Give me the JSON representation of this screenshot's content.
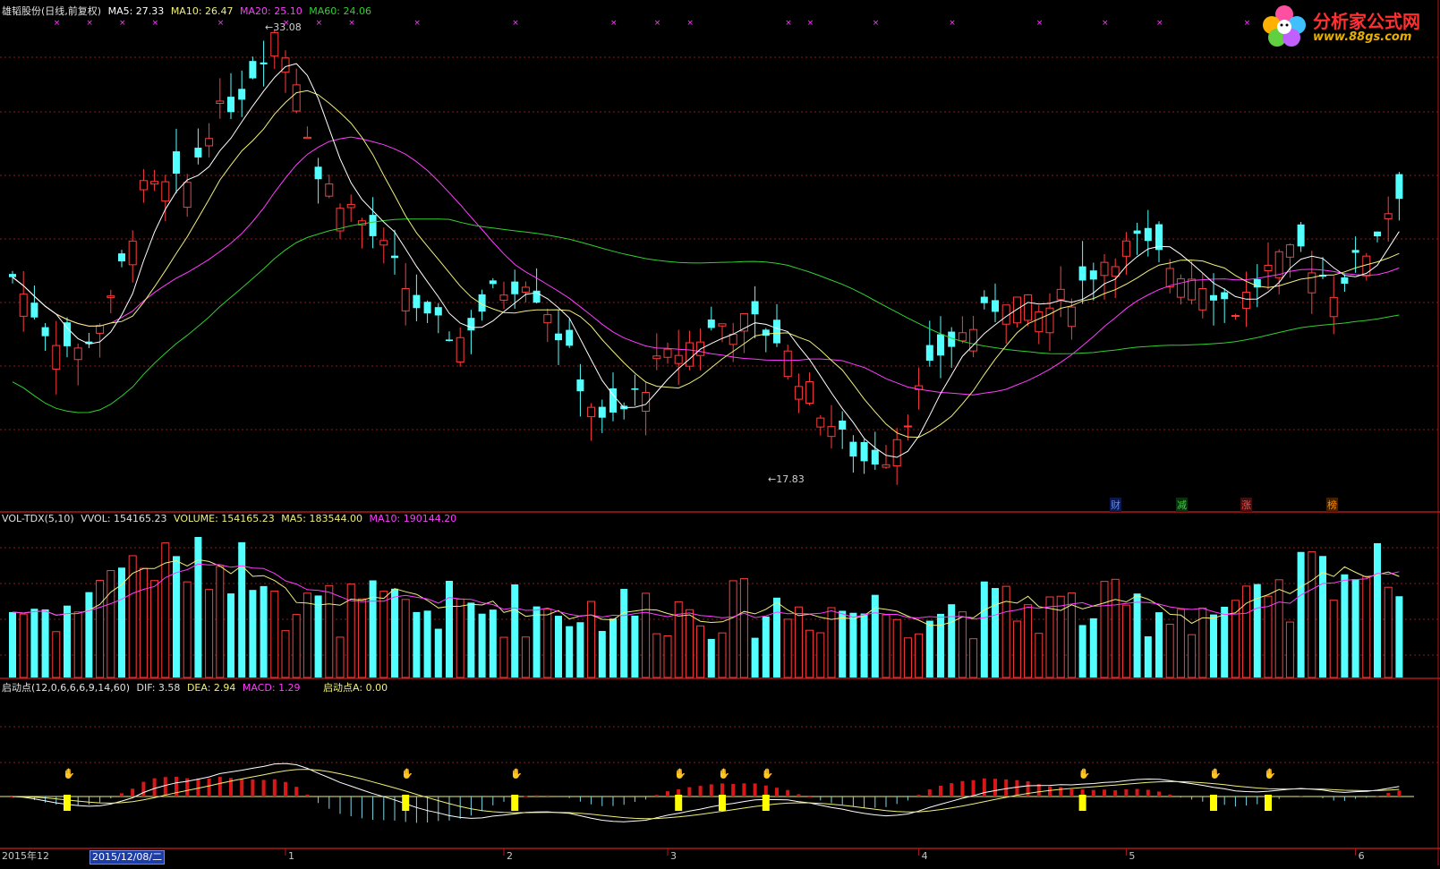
{
  "header_main": {
    "title": "雄韬股份(日线,前复权)",
    "ma5": "MA5: 27.33",
    "ma10": "MA10: 26.47",
    "ma20": "MA20: 25.10",
    "ma60": "MA60: 24.06"
  },
  "header_vol": {
    "title": "VOL-TDX(5,10)",
    "vvol": "VVOL: 154165.23",
    "volume": "VOLUME: 154165.23",
    "ma5": "MA5: 183544.00",
    "ma10": "MA10: 190144.20"
  },
  "header_ind": {
    "title": "启动点(12,0,6,6,6,9,14,60)",
    "dif": "DIF: 3.58",
    "dea": "DEA: 2.94",
    "macd": "MACD: 1.29",
    "qdd": "启动点A: 0.00"
  },
  "annotations": {
    "high": "←33.08",
    "low": "←17.83"
  },
  "badges": [
    {
      "text": "财",
      "color": "#5a8cff"
    },
    {
      "text": "减",
      "color": "#49c849"
    },
    {
      "text": "涨",
      "color": "#ff4848"
    },
    {
      "text": "榜",
      "color": "#ff8c00"
    }
  ],
  "logo": {
    "cn": "分析家公式网",
    "url": "www.88gs.com"
  },
  "x_axis": {
    "start": "2015年12",
    "cursor_date": "2015/12/08/二",
    "months": [
      "1",
      "2",
      "3",
      "4",
      "5",
      "6"
    ]
  },
  "colors": {
    "up": "#ff3c3c",
    "down": "#54ffff",
    "ma5": "#ffffff",
    "ma10": "#f0f07a",
    "ma20": "#ff3cff",
    "ma60": "#30d030",
    "grid": "#8b1a1a"
  },
  "chart_data": {
    "type": "candlestick",
    "y_high": 33.08,
    "y_low": 17.83,
    "count": 128,
    "months": [
      "1",
      "2",
      "3",
      "4",
      "5",
      "6"
    ]
  }
}
